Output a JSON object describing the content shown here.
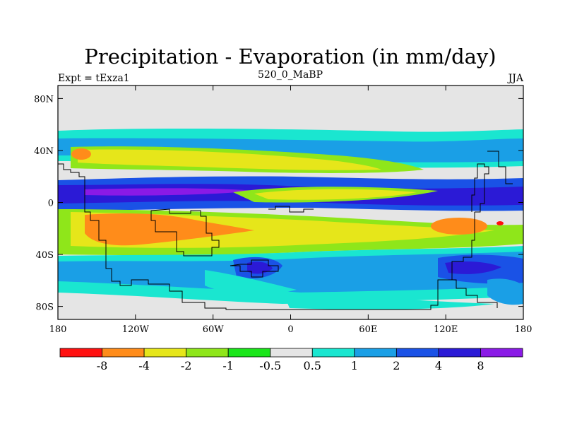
{
  "header": {
    "title": "Precipitation - Evaporation (in mm/day)",
    "left": "Expt = tExza1",
    "center": "520_0_MaBP",
    "right": "JJA"
  },
  "colors": {
    "land_bg": "#e5e5e5",
    "frame": "#000000"
  },
  "map": {
    "lat_ticks": [
      "80N",
      "40N",
      "0",
      "40S",
      "80S"
    ],
    "lat_values": [
      80,
      40,
      0,
      -40,
      -80
    ],
    "lon_ticks": [
      "180",
      "120W",
      "60W",
      "0",
      "60E",
      "120E",
      "180"
    ],
    "lon_values": [
      -180,
      -120,
      -60,
      0,
      60,
      120,
      180
    ],
    "lat_range": [
      -90,
      90
    ],
    "lon_range": [
      -180,
      180
    ]
  },
  "legend": {
    "colors": [
      "#ff1010",
      "#ff8c1a",
      "#e6e61a",
      "#8fe61a",
      "#1ae61a",
      "#e5e5e5",
      "#1ae6d0",
      "#1a9fe6",
      "#1a52e6",
      "#2b1ad6",
      "#8a1ae6"
    ],
    "labels": [
      "-8",
      "-4",
      "-2",
      "-1",
      "-0.5",
      "0.5",
      "1",
      "2",
      "4",
      "8"
    ]
  }
}
